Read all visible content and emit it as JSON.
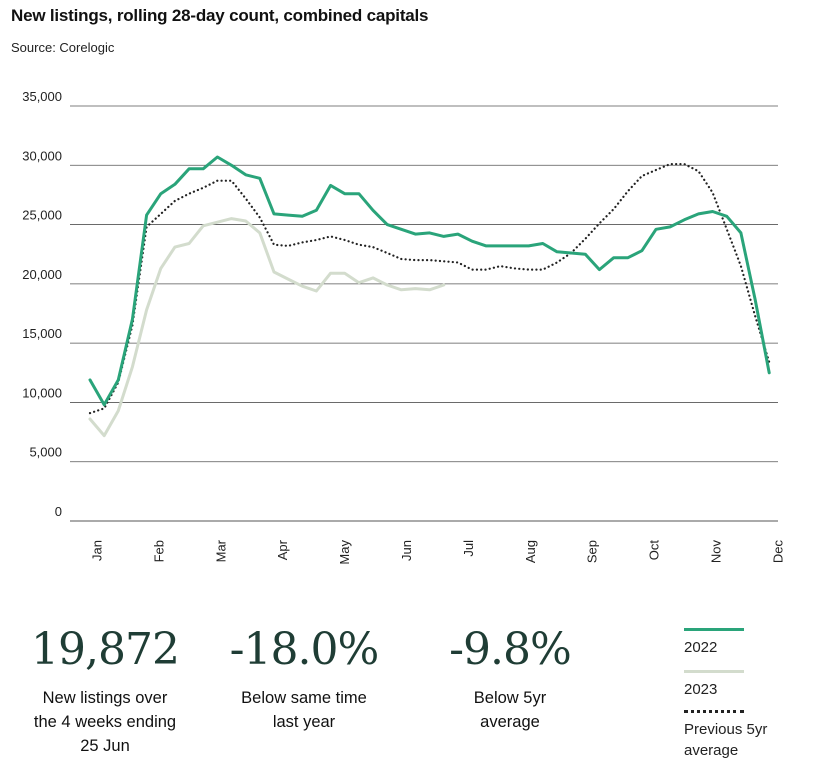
{
  "header": {
    "title": "New listings, rolling 28-day count, combined capitals",
    "source": "Source: Corelogic"
  },
  "colors": {
    "s2022": "#2aa47a",
    "s2023": "#d3dccd",
    "prev5yr": "#222222",
    "grid": "#555555"
  },
  "stats": [
    {
      "value": "19,872",
      "caption_lines": [
        "New listings over",
        "the 4 weeks ending",
        "25 Jun"
      ]
    },
    {
      "value": "-18.0%",
      "caption_lines": [
        "Below same time",
        "last year"
      ]
    },
    {
      "value": "-9.8%",
      "caption_lines": [
        "Below 5yr",
        "average"
      ]
    }
  ],
  "legend": {
    "items": [
      {
        "label_lines": [
          "2022"
        ],
        "style": "solid",
        "color": "#2aa47a"
      },
      {
        "label_lines": [
          "2023"
        ],
        "style": "solid",
        "color": "#d3dccd"
      },
      {
        "label_lines": [
          "Previous 5yr",
          "average"
        ],
        "style": "dotted",
        "color": "#222222"
      }
    ]
  },
  "chart_data": {
    "type": "line",
    "title": "New listings, rolling 28-day count, combined capitals",
    "xlabel": "",
    "ylabel": "",
    "ylim": [
      0,
      35000
    ],
    "yticks": [
      0,
      5000,
      10000,
      15000,
      20000,
      25000,
      30000,
      35000
    ],
    "ytick_labels": [
      "0",
      "5,000",
      "10,000",
      "15,000",
      "20,000",
      "25,000",
      "30,000",
      "35,000"
    ],
    "months": [
      "Jan",
      "Feb",
      "Mar",
      "Apr",
      "May",
      "Jun",
      "Jul",
      "Aug",
      "Sep",
      "Oct",
      "Nov",
      "Dec"
    ],
    "x_unit": "week",
    "grid": true,
    "series": [
      {
        "name": "2022",
        "style": "solid",
        "color": "#2aa47a",
        "x": [
          0,
          1,
          2,
          3,
          4,
          5,
          6,
          7,
          8,
          9,
          10,
          11,
          12,
          13,
          14,
          15,
          16,
          17,
          18,
          19,
          20,
          21,
          22,
          23,
          24,
          25,
          26,
          27,
          28,
          29,
          30,
          31,
          32,
          33,
          34,
          35,
          36,
          37,
          38,
          39,
          40,
          41,
          42,
          43,
          44,
          45,
          46,
          47,
          48
        ],
        "y": [
          11900,
          9800,
          11900,
          17000,
          25800,
          27600,
          28400,
          29700,
          29700,
          30700,
          30000,
          29200,
          28900,
          25900,
          25800,
          25700,
          26200,
          28300,
          27600,
          27600,
          26200,
          25000,
          24600,
          24200,
          24300,
          24000,
          24200,
          23600,
          23200,
          23200,
          23200,
          23200,
          23400,
          22700,
          22600,
          22500,
          21200,
          22200,
          22200,
          22800,
          24600,
          24800,
          25400,
          25900,
          26100,
          25700,
          24300,
          18700,
          12500
        ]
      },
      {
        "name": "2023",
        "style": "solid",
        "color": "#d3dccd",
        "x": [
          0,
          1,
          2,
          3,
          4,
          5,
          6,
          7,
          8,
          9,
          10,
          11,
          12,
          13,
          14,
          15,
          16,
          17,
          18,
          19,
          20,
          21,
          22,
          23,
          24,
          25
        ],
        "y": [
          8600,
          7200,
          9300,
          13000,
          17800,
          21300,
          23100,
          23400,
          24900,
          25200,
          25500,
          25300,
          24300,
          21000,
          20400,
          19800,
          19400,
          20900,
          20900,
          20100,
          20500,
          19900,
          19500,
          19600,
          19500,
          19900
        ]
      },
      {
        "name": "Previous 5yr",
        "style": "dotted",
        "color": "#222222",
        "x": [
          0,
          1,
          2,
          3,
          4,
          5,
          6,
          7,
          8,
          9,
          10,
          11,
          12,
          13,
          14,
          15,
          16,
          17,
          18,
          19,
          20,
          21,
          22,
          23,
          24,
          25,
          26,
          27,
          28,
          29,
          30,
          31,
          32,
          33,
          34,
          35,
          36,
          37,
          38,
          39,
          40,
          41,
          42,
          43,
          44,
          45,
          46,
          47,
          48
        ],
        "y": [
          9100,
          9500,
          11700,
          16500,
          24800,
          25900,
          27000,
          27600,
          28100,
          28700,
          28700,
          27200,
          25600,
          23300,
          23200,
          23500,
          23700,
          24000,
          23700,
          23300,
          23100,
          22600,
          22100,
          22000,
          22000,
          21900,
          21800,
          21200,
          21200,
          21500,
          21300,
          21200,
          21200,
          21800,
          22600,
          23800,
          25100,
          26300,
          27800,
          29100,
          29600,
          30100,
          30100,
          29500,
          27700,
          24600,
          21500,
          17300,
          13400
        ]
      }
    ]
  }
}
